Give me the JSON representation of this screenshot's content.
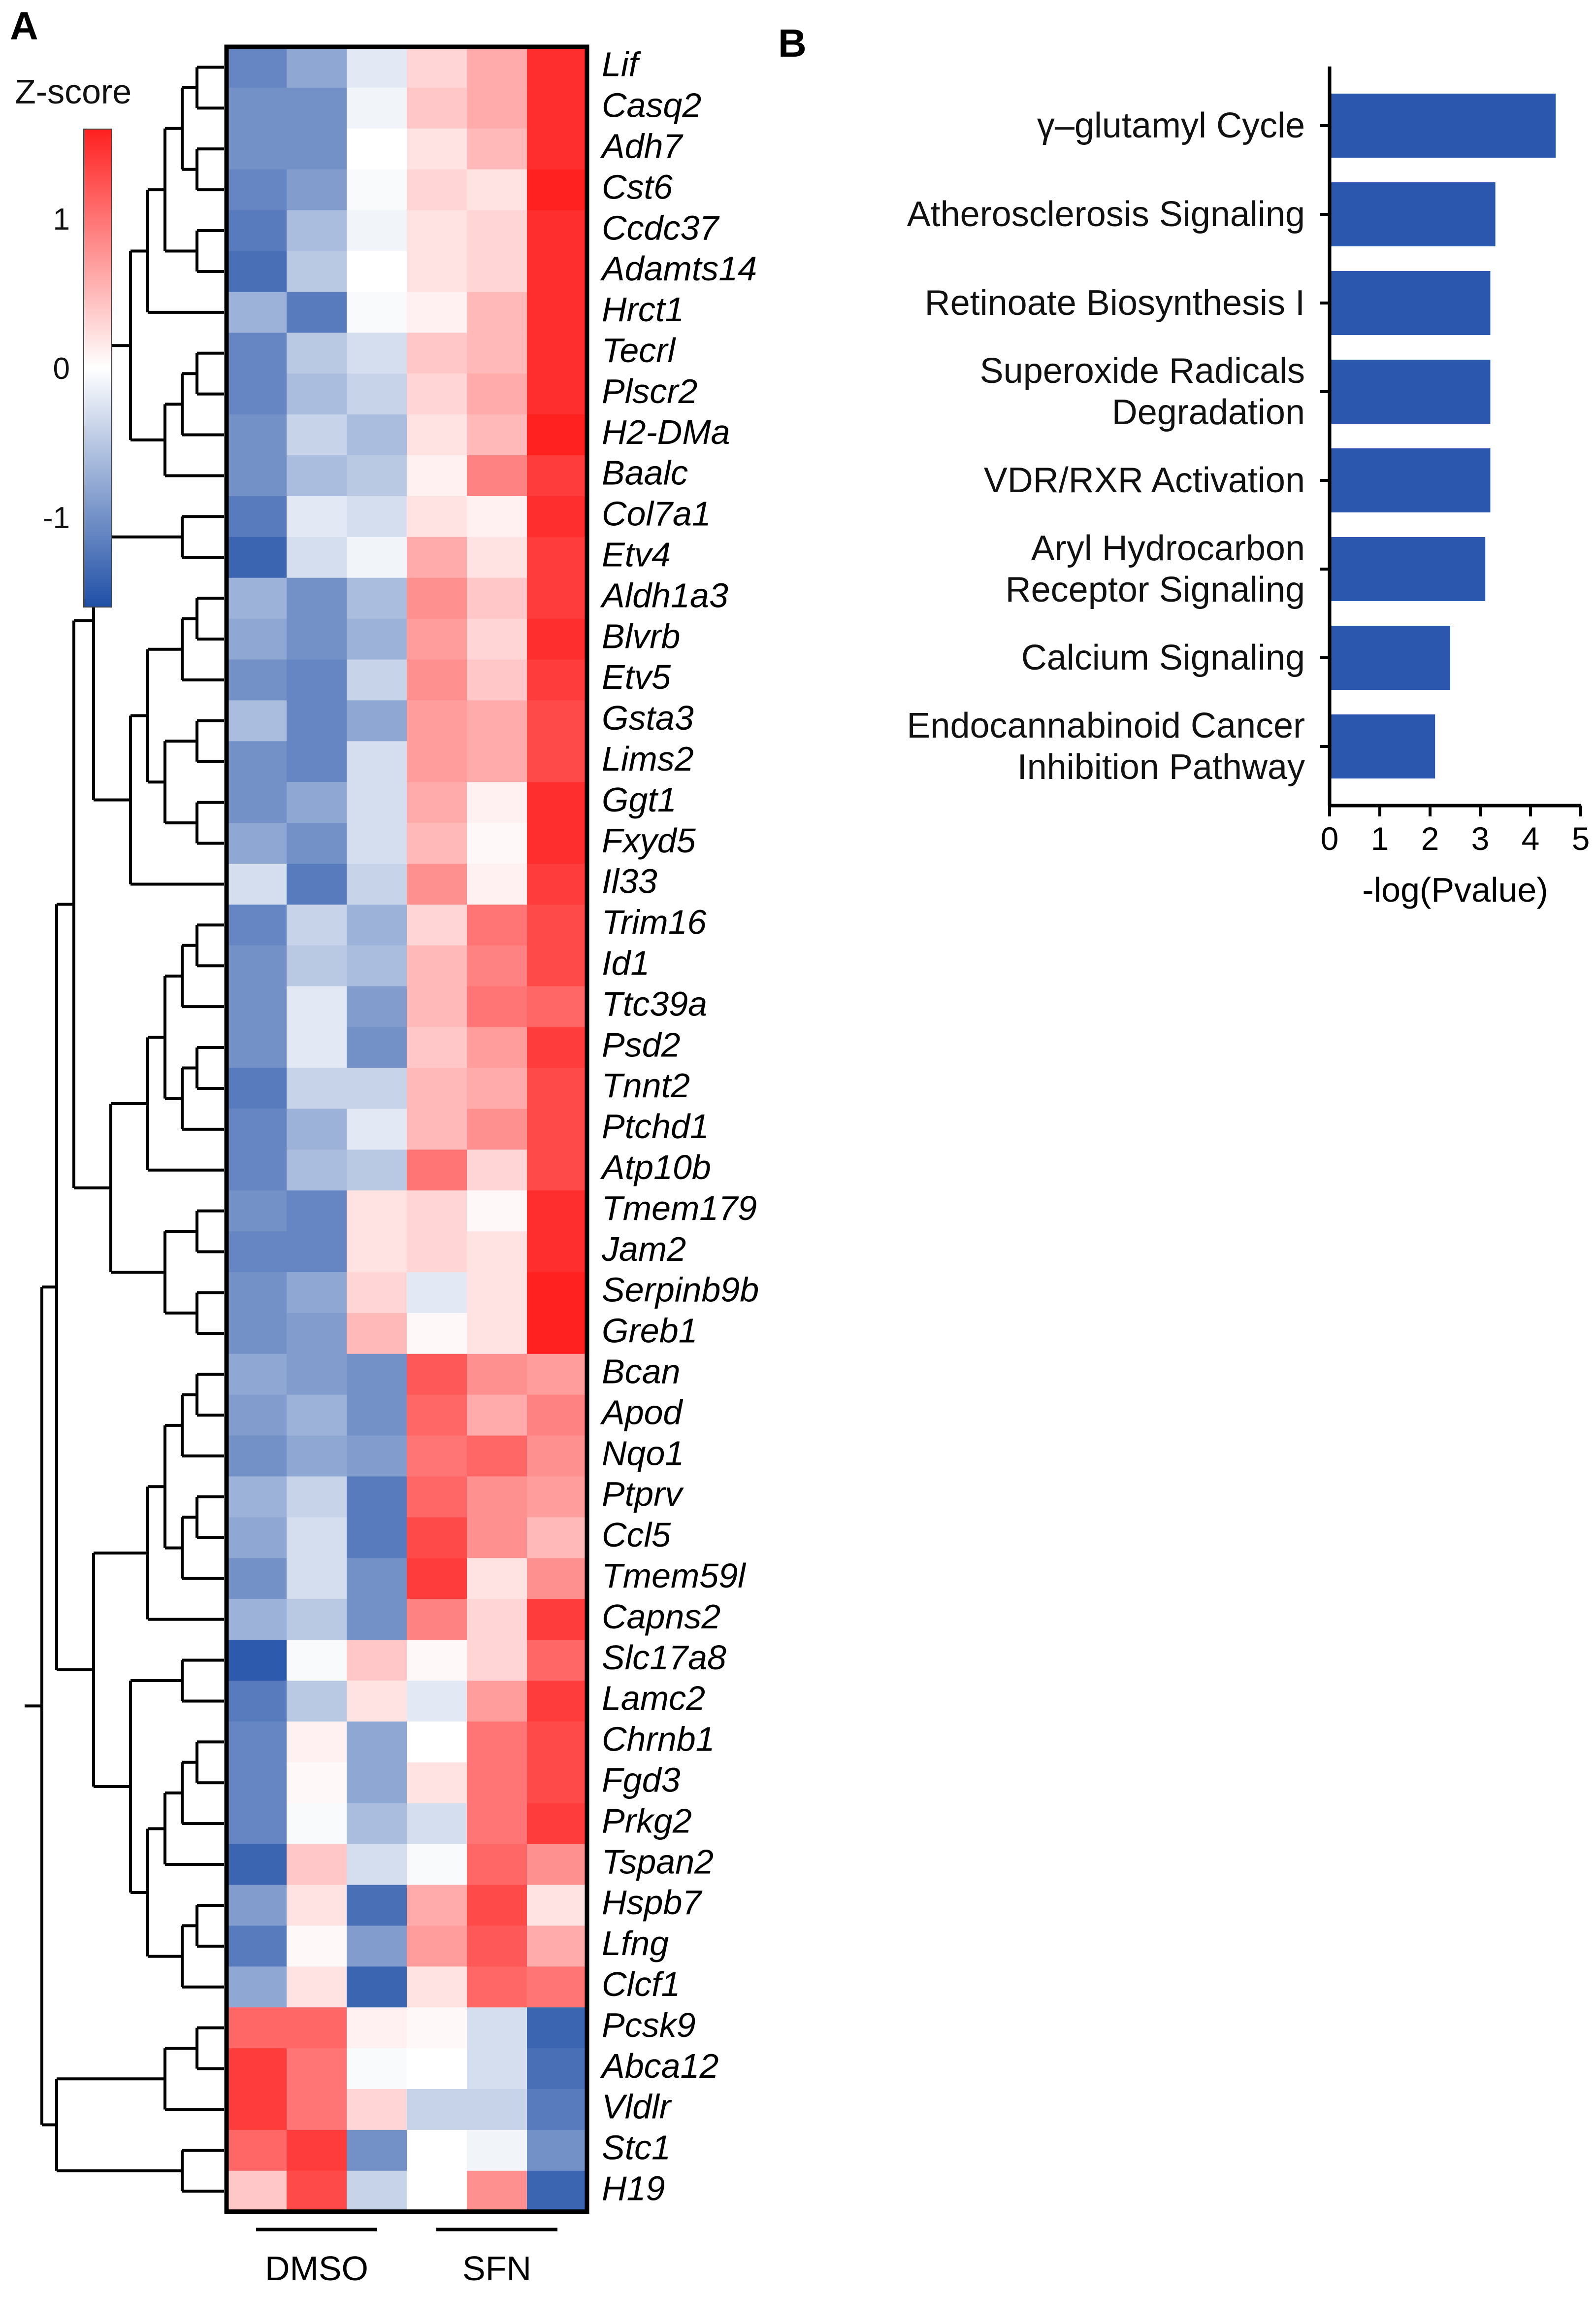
{
  "panels": {
    "a": "A",
    "b": "B"
  },
  "colors": {
    "low": "#1f4fa6",
    "mid": "#ffffff",
    "high": "#ff2020",
    "bar": "#2b57ae"
  },
  "chart_data": [
    {
      "type": "heatmap",
      "title": "",
      "colorbar": {
        "title": "Z-score",
        "range": [
          -1.6,
          1.6
        ],
        "ticks": [
          1,
          0,
          -1
        ],
        "tick_labels": [
          "1",
          "0",
          "-1"
        ]
      },
      "groups": [
        {
          "label": "DMSO",
          "columns": [
            0,
            1,
            2
          ]
        },
        {
          "label": "SFN",
          "columns": [
            3,
            4,
            5
          ]
        }
      ],
      "rows": [
        "Lif",
        "Casq2",
        "Adh7",
        "Cst6",
        "Ccdc37",
        "Adamts14",
        "Hrct1",
        "Tecrl",
        "Plscr2",
        "H2-DMa",
        "Baalc",
        "Col7a1",
        "Etv4",
        "Aldh1a3",
        "Blvrb",
        "Etv5",
        "Gsta3",
        "Lims2",
        "Ggt1",
        "Fxyd5",
        "Il33",
        "Trim16",
        "Id1",
        "Ttc39a",
        "Psd2",
        "Tnnt2",
        "Ptchd1",
        "Atp10b",
        "Tmem179",
        "Jam2",
        "Serpinb9b",
        "Greb1",
        "Bcan",
        "Apod",
        "Nqo1",
        "Ptprv",
        "Ccl5",
        "Tmem59l",
        "Capns2",
        "Slc17a8",
        "Lamc2",
        "Chrnb1",
        "Fgd3",
        "Prkg2",
        "Tspan2",
        "Hspb7",
        "Lfng",
        "Clcf1",
        "Pcsk9",
        "Abca12",
        "Vldlr",
        "Stc1",
        "H19"
      ],
      "values": [
        [
          -1.1,
          -0.8,
          -0.2,
          0.3,
          0.6,
          1.5
        ],
        [
          -1.0,
          -1.0,
          -0.1,
          0.4,
          0.6,
          1.5
        ],
        [
          -1.0,
          -1.0,
          0.0,
          0.2,
          0.5,
          1.5
        ],
        [
          -1.1,
          -0.9,
          -0.05,
          0.3,
          0.2,
          1.6
        ],
        [
          -1.2,
          -0.6,
          -0.1,
          0.2,
          0.3,
          1.5
        ],
        [
          -1.3,
          -0.5,
          0.0,
          0.2,
          0.3,
          1.5
        ],
        [
          -0.7,
          -1.2,
          -0.05,
          0.1,
          0.5,
          1.5
        ],
        [
          -1.1,
          -0.5,
          -0.3,
          0.4,
          0.5,
          1.5
        ],
        [
          -1.1,
          -0.6,
          -0.4,
          0.3,
          0.6,
          1.5
        ],
        [
          -1.0,
          -0.4,
          -0.6,
          0.2,
          0.5,
          1.6
        ],
        [
          -1.0,
          -0.6,
          -0.5,
          0.1,
          0.9,
          1.4
        ],
        [
          -1.2,
          -0.2,
          -0.3,
          0.2,
          0.1,
          1.5
        ],
        [
          -1.4,
          -0.3,
          -0.1,
          0.6,
          0.2,
          1.4
        ],
        [
          -0.7,
          -1.0,
          -0.6,
          0.8,
          0.4,
          1.4
        ],
        [
          -0.8,
          -1.0,
          -0.7,
          0.7,
          0.3,
          1.5
        ],
        [
          -1.0,
          -1.1,
          -0.4,
          0.8,
          0.4,
          1.4
        ],
        [
          -0.6,
          -1.1,
          -0.8,
          0.7,
          0.6,
          1.3
        ],
        [
          -1.0,
          -1.1,
          -0.3,
          0.7,
          0.6,
          1.3
        ],
        [
          -1.0,
          -0.8,
          -0.3,
          0.6,
          0.1,
          1.5
        ],
        [
          -0.8,
          -1.0,
          -0.3,
          0.5,
          0.05,
          1.5
        ],
        [
          -0.3,
          -1.2,
          -0.4,
          0.8,
          0.1,
          1.4
        ],
        [
          -1.1,
          -0.4,
          -0.7,
          0.3,
          1.0,
          1.3
        ],
        [
          -1.0,
          -0.5,
          -0.6,
          0.5,
          0.9,
          1.3
        ],
        [
          -1.0,
          -0.2,
          -0.9,
          0.5,
          1.0,
          1.1
        ],
        [
          -1.0,
          -0.2,
          -1.0,
          0.4,
          0.7,
          1.4
        ],
        [
          -1.2,
          -0.4,
          -0.4,
          0.5,
          0.6,
          1.3
        ],
        [
          -1.1,
          -0.7,
          -0.2,
          0.5,
          0.8,
          1.3
        ],
        [
          -1.1,
          -0.6,
          -0.5,
          1.0,
          0.3,
          1.3
        ],
        [
          -1.0,
          -1.1,
          0.2,
          0.3,
          0.05,
          1.5
        ],
        [
          -1.1,
          -1.1,
          0.2,
          0.3,
          0.2,
          1.5
        ],
        [
          -1.0,
          -0.8,
          0.3,
          -0.2,
          0.2,
          1.6
        ],
        [
          -1.0,
          -0.9,
          0.5,
          0.05,
          0.2,
          1.6
        ],
        [
          -0.8,
          -0.9,
          -1.0,
          1.2,
          0.8,
          0.7
        ],
        [
          -0.9,
          -0.7,
          -1.0,
          1.1,
          0.6,
          0.9
        ],
        [
          -1.0,
          -0.8,
          -0.9,
          1.0,
          1.1,
          0.8
        ],
        [
          -0.7,
          -0.4,
          -1.2,
          1.1,
          0.8,
          0.7
        ],
        [
          -0.8,
          -0.3,
          -1.2,
          1.3,
          0.8,
          0.5
        ],
        [
          -1.0,
          -0.3,
          -1.0,
          1.4,
          0.2,
          0.8
        ],
        [
          -0.7,
          -0.5,
          -1.0,
          0.9,
          0.3,
          1.4
        ],
        [
          -1.5,
          -0.05,
          0.4,
          0.05,
          0.3,
          1.1
        ],
        [
          -1.2,
          -0.5,
          0.2,
          -0.2,
          0.7,
          1.4
        ],
        [
          -1.1,
          0.1,
          -0.8,
          0.0,
          1.0,
          1.3
        ],
        [
          -1.1,
          0.05,
          -0.8,
          0.2,
          1.0,
          1.3
        ],
        [
          -1.1,
          -0.05,
          -0.6,
          -0.3,
          1.0,
          1.4
        ],
        [
          -1.4,
          0.4,
          -0.3,
          -0.05,
          1.1,
          0.8
        ],
        [
          -0.9,
          0.2,
          -1.3,
          0.6,
          1.3,
          0.2
        ],
        [
          -1.2,
          0.05,
          -0.9,
          0.7,
          1.2,
          0.6
        ],
        [
          -0.8,
          0.2,
          -1.4,
          0.2,
          1.1,
          1.0
        ],
        [
          1.1,
          1.1,
          0.1,
          0.05,
          -0.3,
          -1.4
        ],
        [
          1.4,
          1.0,
          -0.05,
          0.0,
          -0.3,
          -1.3
        ],
        [
          1.4,
          1.0,
          0.3,
          -0.4,
          -0.4,
          -1.2
        ],
        [
          1.1,
          1.4,
          -1.0,
          0.0,
          -0.1,
          -1.0
        ],
        [
          0.4,
          1.3,
          -0.4,
          0.0,
          0.8,
          -1.4
        ]
      ]
    },
    {
      "type": "bar",
      "orientation": "horizontal",
      "categories": [
        "γ–glutamyl Cycle",
        "Atherosclerosis Signaling",
        "Retinoate Biosynthesis I",
        "Superoxide Radicals Degradation",
        "VDR/RXR Activation",
        "Aryl Hydrocarbon Receptor Signaling",
        "Calcium Signaling",
        "Endocannabinoid Cancer Inhibition Pathway"
      ],
      "category_lines": [
        [
          "γ–glutamyl Cycle"
        ],
        [
          "Atherosclerosis Signaling"
        ],
        [
          "Retinoate Biosynthesis I"
        ],
        [
          "Superoxide Radicals",
          "Degradation"
        ],
        [
          "VDR/RXR Activation"
        ],
        [
          "Aryl Hydrocarbon",
          "Receptor Signaling"
        ],
        [
          "Calcium Signaling"
        ],
        [
          "Endocannabinoid Cancer",
          "Inhibition Pathway"
        ]
      ],
      "values": [
        4.5,
        3.3,
        3.2,
        3.2,
        3.2,
        3.1,
        2.4,
        2.1
      ],
      "xlabel": "-log(Pvalue)",
      "xlim": [
        0,
        5
      ],
      "xticks": [
        0,
        1,
        2,
        3,
        4,
        5
      ]
    }
  ]
}
